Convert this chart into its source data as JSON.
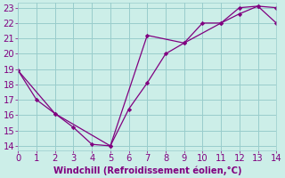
{
  "xlabel": "Windchill (Refroidissement éolien,°C)",
  "xlim": [
    0,
    14
  ],
  "ylim": [
    13.7,
    23.3
  ],
  "yticks": [
    14,
    15,
    16,
    17,
    18,
    19,
    20,
    21,
    22,
    23
  ],
  "xticks": [
    0,
    1,
    2,
    3,
    4,
    5,
    6,
    7,
    8,
    9,
    10,
    11,
    12,
    13,
    14
  ],
  "line1_x": [
    0,
    1,
    2,
    3,
    4,
    5,
    6,
    7,
    8,
    9,
    10,
    11,
    12,
    13,
    14
  ],
  "line1_y": [
    18.9,
    17.0,
    16.1,
    15.2,
    14.1,
    14.0,
    16.4,
    18.1,
    20.0,
    20.7,
    22.0,
    22.0,
    22.6,
    23.1,
    23.0
  ],
  "line2_x": [
    0,
    2,
    5,
    7,
    9,
    11,
    12,
    13,
    14
  ],
  "line2_y": [
    18.9,
    16.1,
    14.0,
    21.2,
    20.7,
    22.0,
    23.0,
    23.1,
    22.0
  ],
  "line_color": "#800080",
  "bg_color": "#cceee8",
  "grid_color": "#99cccc",
  "tick_color": "#800080",
  "label_color": "#800080",
  "font_size": 7.2
}
